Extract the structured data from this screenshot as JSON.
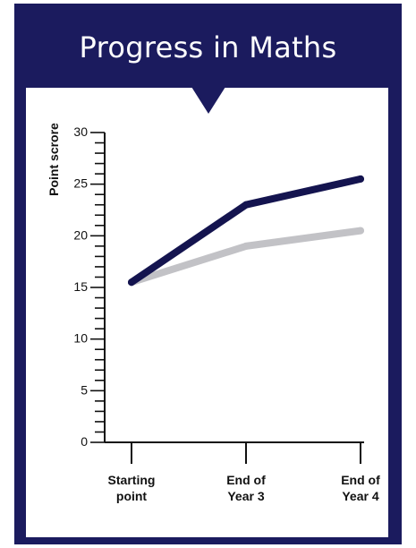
{
  "title": "Progress in Maths",
  "colors": {
    "frame": "#1b1b5e",
    "series_dark": "#14144f",
    "series_light": "#c2c2c6"
  },
  "chart_data": {
    "type": "line",
    "ylabel": "Point scrore",
    "ylim": [
      0,
      30
    ],
    "y_labeled_ticks": [
      0,
      5,
      10,
      15,
      20,
      25,
      30
    ],
    "y_minor_step": 1,
    "categories": [
      [
        "Starting",
        "point"
      ],
      [
        "End of",
        "Year 3"
      ],
      [
        "End of",
        "Year 4"
      ]
    ],
    "series": [
      {
        "color": "#c2c2c6",
        "values": [
          15.5,
          19,
          20.5
        ]
      },
      {
        "color": "#14144f",
        "values": [
          15.5,
          23,
          25.5
        ]
      }
    ],
    "grid": false,
    "legend": false
  }
}
